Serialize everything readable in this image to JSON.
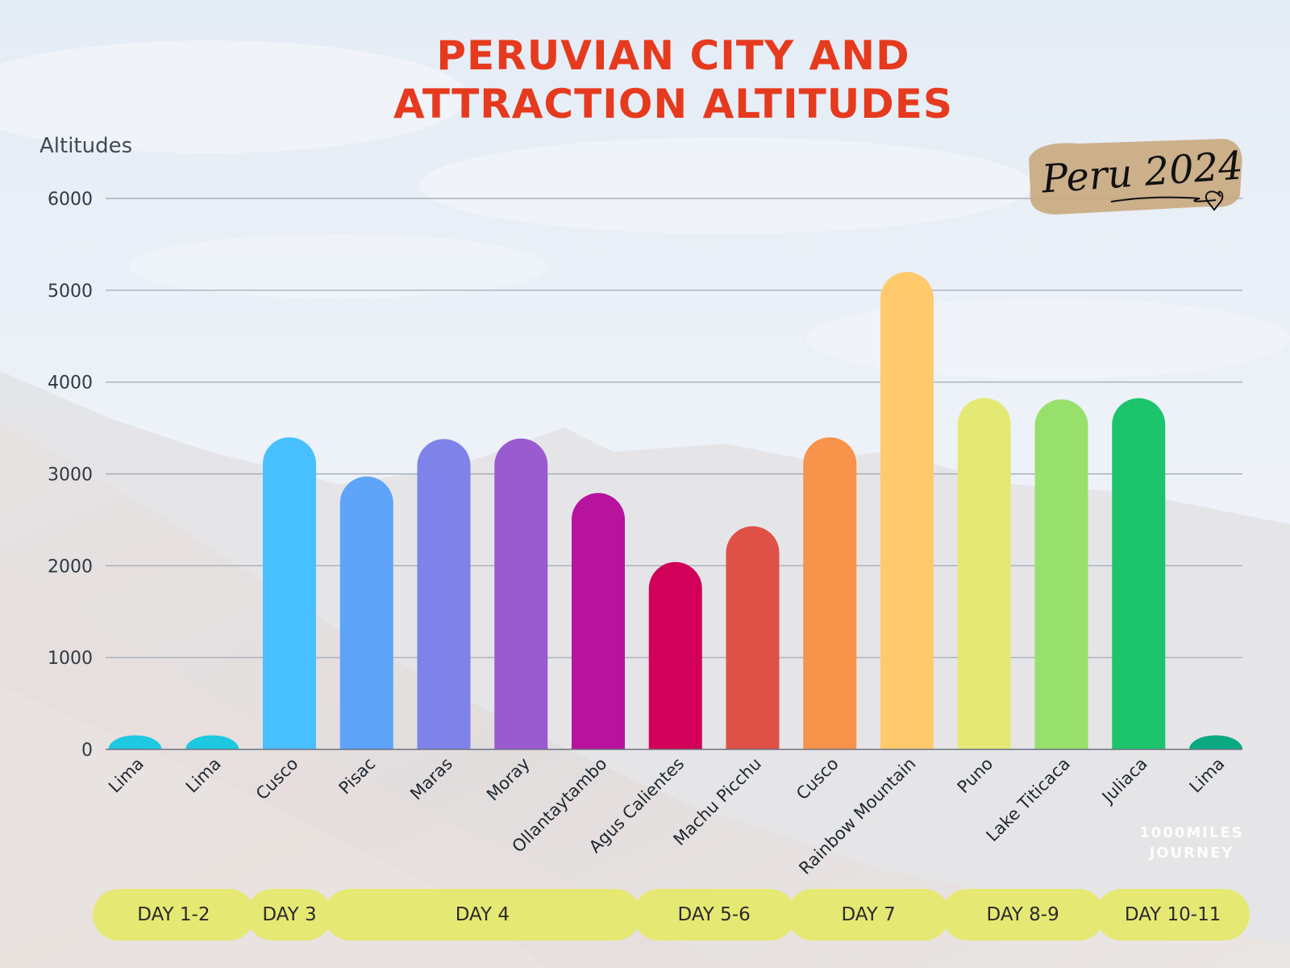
{
  "chart_data": {
    "type": "bar",
    "title": "PERUVIAN CITY AND ATTRACTION ALTITUDES",
    "title_lines": [
      "PERUVIAN CITY AND",
      "ATTRACTION ALTITUDES"
    ],
    "ylabel": "Altitudes",
    "xlabel": "",
    "ylim": [
      0,
      6000
    ],
    "yticks": [
      0,
      1000,
      2000,
      3000,
      4000,
      5000,
      6000
    ],
    "grid": true,
    "categories": [
      "Lima",
      "Lima",
      "Cusco",
      "Pisac",
      "Maras",
      "Moray",
      "Ollantaytambo",
      "Agus Calientes",
      "Machu Picchu",
      "Cusco",
      "Rainbow Mountain",
      "Puno",
      "Lake Titicaca",
      "Juliaca",
      "Lima"
    ],
    "values": [
      154,
      154,
      3399,
      2972,
      3380,
      3385,
      2792,
      2040,
      2430,
      3399,
      5200,
      3827,
      3812,
      3825,
      154
    ],
    "bar_colors": [
      "#1ec8e0",
      "#1ec8e0",
      "#48c0ff",
      "#5ea4f8",
      "#7f82e8",
      "#9a5ad0",
      "#b8139e",
      "#d10058",
      "#df5046",
      "#f8934c",
      "#ffc96c",
      "#e4e874",
      "#98e06c",
      "#1cc46c",
      "#0ba882"
    ],
    "day_groups": [
      {
        "label": "DAY 1-2",
        "start": 0,
        "end": 1
      },
      {
        "label": "DAY 3",
        "start": 2,
        "end": 2
      },
      {
        "label": "DAY 4",
        "start": 3,
        "end": 6
      },
      {
        "label": "DAY 5-6",
        "start": 7,
        "end": 8
      },
      {
        "label": "DAY 7",
        "start": 9,
        "end": 10
      },
      {
        "label": "DAY 8-9",
        "start": 11,
        "end": 12
      },
      {
        "label": "DAY 10-11",
        "start": 13,
        "end": 14
      }
    ]
  },
  "badge": {
    "text": "Peru 2024"
  },
  "logo": {
    "line1": "1000MILES",
    "line2": "JOURNEY"
  },
  "colors": {
    "title": "#e63a1f",
    "day_pill": "#e6e874",
    "badge": "#c9a97e"
  }
}
